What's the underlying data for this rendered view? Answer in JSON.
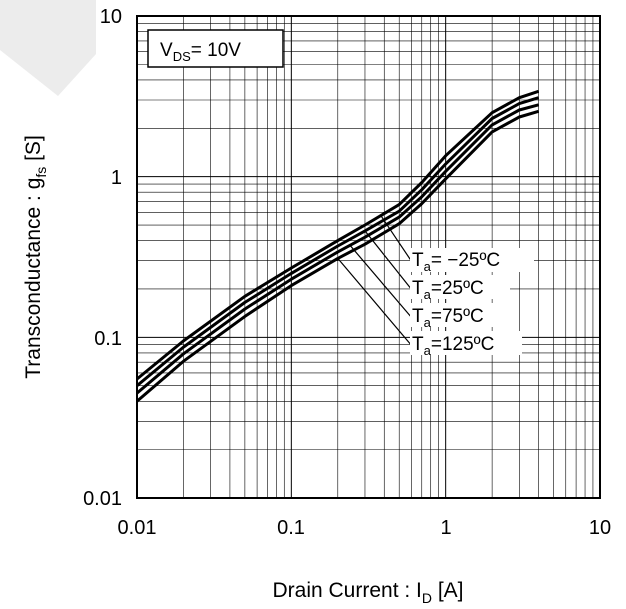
{
  "chart_data": {
    "type": "line",
    "x_scale": "log",
    "y_scale": "log",
    "xlim": [
      0.01,
      10
    ],
    "ylim": [
      0.01,
      10
    ],
    "grid": true,
    "x_ticks": [
      "0.01",
      "0.1",
      "1",
      "10"
    ],
    "y_ticks": [
      "0.01",
      "0.1",
      "1",
      "10"
    ],
    "xlabel": {
      "main": "Drain Current : I",
      "sub": "D",
      "unit": " [A]"
    },
    "ylabel": {
      "main": "Transconductance : g",
      "sub": "fs",
      "unit": " [S]"
    },
    "condition": {
      "main": "V",
      "sub": "DS",
      "rest": "= 10V"
    },
    "series": [
      {
        "label_main": "T",
        "label_sub": "a",
        "label_rest": "= −25ºC",
        "x": [
          0.01,
          0.02,
          0.05,
          0.1,
          0.2,
          0.3,
          0.5,
          0.7,
          1,
          2,
          3,
          4
        ],
        "y": [
          0.055,
          0.095,
          0.18,
          0.27,
          0.4,
          0.5,
          0.67,
          0.92,
          1.35,
          2.5,
          3.1,
          3.4
        ]
      },
      {
        "label_main": "T",
        "label_sub": "a",
        "label_rest": "=25ºC",
        "x": [
          0.01,
          0.02,
          0.05,
          0.1,
          0.2,
          0.3,
          0.5,
          0.7,
          1,
          2,
          3,
          4
        ],
        "y": [
          0.05,
          0.087,
          0.165,
          0.25,
          0.37,
          0.46,
          0.61,
          0.83,
          1.2,
          2.3,
          2.85,
          3.1
        ]
      },
      {
        "label_main": "T",
        "label_sub": "a",
        "label_rest": "=75ºC",
        "x": [
          0.01,
          0.02,
          0.05,
          0.1,
          0.2,
          0.3,
          0.5,
          0.7,
          1,
          2,
          3,
          4
        ],
        "y": [
          0.045,
          0.079,
          0.15,
          0.23,
          0.34,
          0.42,
          0.56,
          0.75,
          1.08,
          2.1,
          2.6,
          2.8
        ]
      },
      {
        "label_main": "T",
        "label_sub": "a",
        "label_rest": "=125ºC",
        "x": [
          0.01,
          0.02,
          0.05,
          0.1,
          0.2,
          0.3,
          0.5,
          0.7,
          1,
          2,
          3,
          4
        ],
        "y": [
          0.04,
          0.071,
          0.135,
          0.21,
          0.31,
          0.38,
          0.51,
          0.68,
          0.97,
          1.9,
          2.35,
          2.55
        ]
      }
    ]
  }
}
